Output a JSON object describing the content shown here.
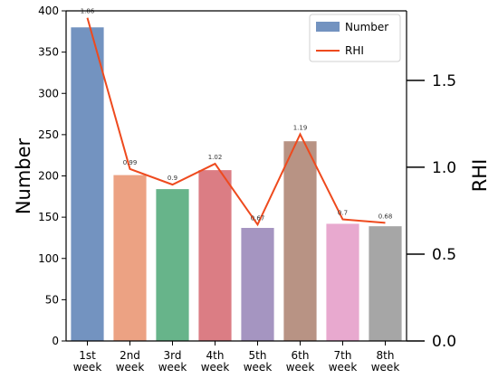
{
  "chart_data": {
    "type": "bar",
    "categories": [
      [
        "1st",
        "week"
      ],
      [
        "2nd",
        "week"
      ],
      [
        "3rd",
        "week"
      ],
      [
        "4th",
        "week"
      ],
      [
        "5th",
        "week"
      ],
      [
        "6th",
        "week"
      ],
      [
        "7th",
        "week"
      ],
      [
        "8th",
        "week"
      ]
    ],
    "series": [
      {
        "name": "Number",
        "type": "bar",
        "axis": "left",
        "values": [
          380,
          201,
          184,
          207,
          137,
          242,
          142,
          139
        ],
        "colors": [
          "#7393c0",
          "#eca283",
          "#67b48a",
          "#db7d84",
          "#a595c1",
          "#b89384",
          "#e8a9cf",
          "#a6a6a6"
        ]
      },
      {
        "name": "RHI",
        "type": "line",
        "axis": "right",
        "values": [
          1.86,
          0.99,
          0.9,
          1.02,
          0.67,
          1.19,
          0.7,
          0.68
        ],
        "labels": [
          "1.86",
          "0.99",
          "0.9",
          "1.02",
          "0.67",
          "1.19",
          "0.7",
          "0.68"
        ],
        "color": "#ee4a1e"
      }
    ],
    "ylabel": "Number",
    "ylim": [
      0,
      400
    ],
    "yticks": [
      "0",
      "50",
      "100",
      "150",
      "200",
      "250",
      "300",
      "350",
      "400"
    ],
    "y2label": "RHI",
    "y2lim": [
      0,
      1.9
    ],
    "y2ticks": [
      "0.0",
      "0.5",
      "1.0",
      "1.5"
    ],
    "grid": false,
    "legend": "top-right"
  }
}
